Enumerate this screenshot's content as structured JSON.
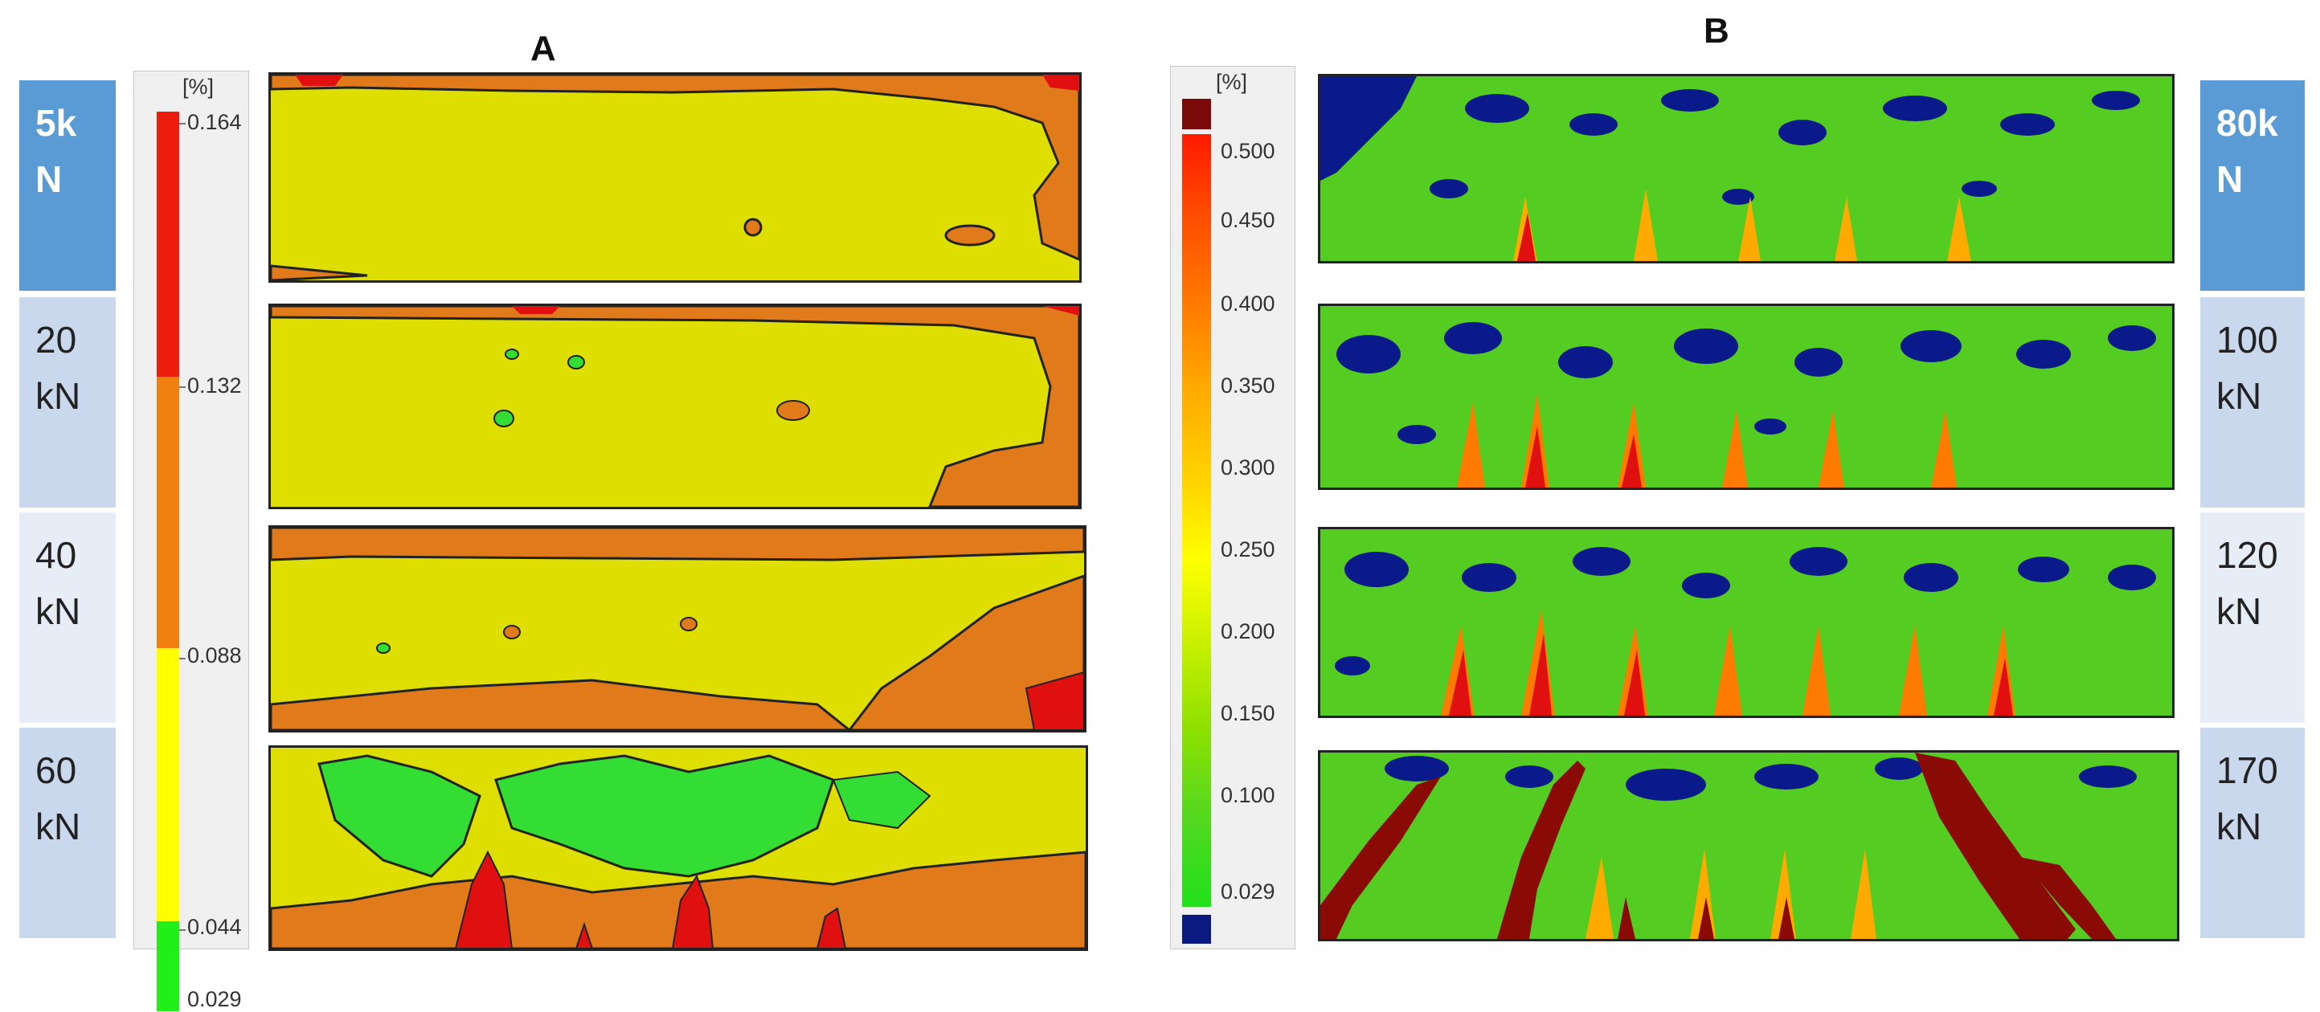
{
  "panel_a": {
    "title": "A",
    "legend": {
      "unit": "[%]",
      "bands": [
        {
          "from": 0.132,
          "to": 0.164,
          "color": "#ee1c0c"
        },
        {
          "from": 0.088,
          "to": 0.132,
          "color": "#f08010"
        },
        {
          "from": 0.044,
          "to": 0.088,
          "color": "#ffff00"
        },
        {
          "from": 0.029,
          "to": 0.044,
          "color": "#22ee1a"
        }
      ],
      "ticks": [
        "0.164",
        "0.132",
        "0.088",
        "0.044",
        "0.029"
      ]
    },
    "loads": [
      {
        "value": "5k",
        "unit": "N"
      },
      {
        "value": "20",
        "unit": "kN"
      },
      {
        "value": "40",
        "unit": "kN"
      },
      {
        "value": "60",
        "unit": "kN"
      }
    ]
  },
  "panel_b": {
    "title": "B",
    "legend": {
      "unit": "[%]",
      "ticks": [
        "0.500",
        "0.450",
        "0.400",
        "0.350",
        "0.300",
        "0.250",
        "0.200",
        "0.150",
        "0.100",
        "0.029"
      ],
      "over_color": "#7a0a0a",
      "under_color": "#0a1a80"
    },
    "loads": [
      {
        "value": "80k",
        "unit": "N"
      },
      {
        "value": "100",
        "unit": "kN"
      },
      {
        "value": "120",
        "unit": "kN"
      },
      {
        "value": "170",
        "unit": "kN"
      }
    ]
  },
  "colors": {
    "beam_a_base": "#dede00",
    "beam_a_orange": "#e07a1a",
    "beam_a_red": "#e01010",
    "beam_a_green": "#33dd33",
    "beam_b_base": "#55cc22",
    "beam_b_blue": "#0b1a8a",
    "beam_b_crack": "#8a0a06"
  }
}
